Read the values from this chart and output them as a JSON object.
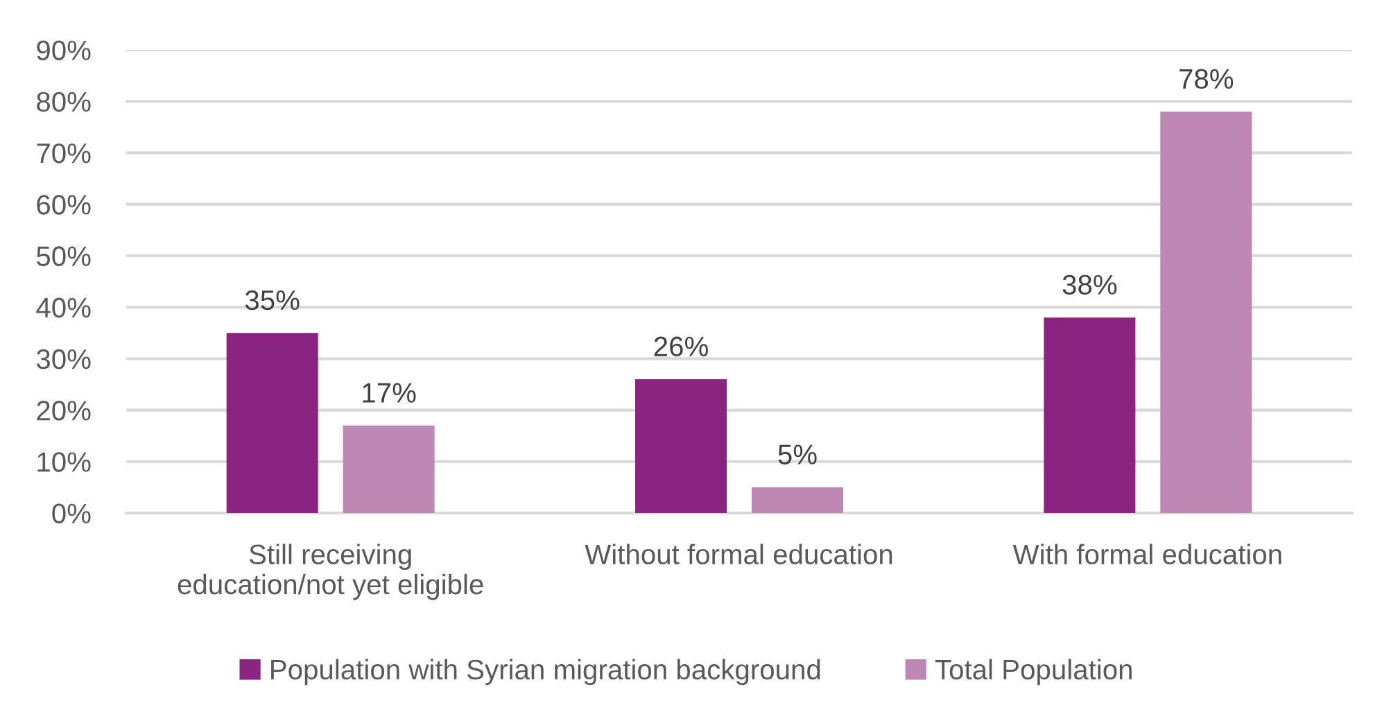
{
  "chart_data": {
    "type": "bar",
    "categories": [
      "Still receiving\neducation/not yet eligible",
      "Without formal education",
      "With formal education"
    ],
    "series": [
      {
        "name": "Population with Syrian migration background",
        "color": "#8b2381",
        "values": [
          35,
          26,
          38
        ],
        "value_labels": [
          "35%",
          "26%",
          "38%"
        ]
      },
      {
        "name": "Total Population",
        "color": "#be88b5",
        "values": [
          17,
          5,
          78
        ],
        "value_labels": [
          "17%",
          "5%",
          "78%"
        ]
      }
    ],
    "ylim": [
      0,
      90
    ],
    "yticks": [
      {
        "value": 0,
        "label": "0%"
      },
      {
        "value": 10,
        "label": "10%"
      },
      {
        "value": 20,
        "label": "20%"
      },
      {
        "value": 30,
        "label": "30%"
      },
      {
        "value": 40,
        "label": "40%"
      },
      {
        "value": 50,
        "label": "50%"
      },
      {
        "value": 60,
        "label": "60%"
      },
      {
        "value": 70,
        "label": "70%"
      },
      {
        "value": 80,
        "label": "80%"
      },
      {
        "value": 90,
        "label": "90%"
      }
    ],
    "grid": "y",
    "legend": "bottom"
  }
}
